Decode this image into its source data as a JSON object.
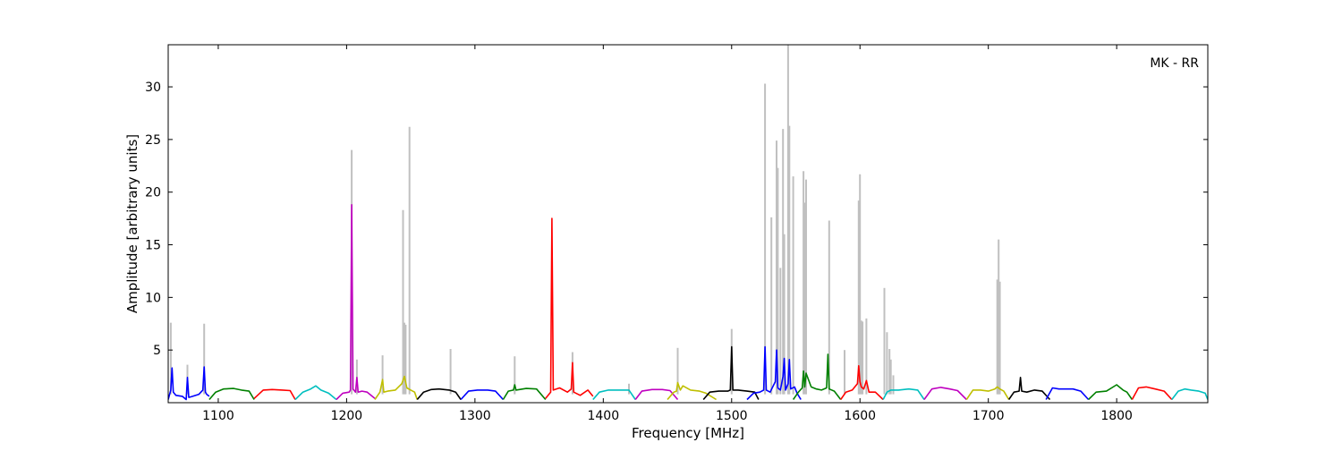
{
  "chart_data": {
    "type": "line",
    "title": "",
    "annotation": "MK - RR",
    "xlabel": "Frequency [MHz]",
    "ylabel": "Amplitude [arbitrary units]",
    "xlim": [
      1061,
      1871
    ],
    "ylim": [
      0,
      34
    ],
    "xticks": [
      1100,
      1200,
      1300,
      1400,
      1500,
      1600,
      1700,
      1800
    ],
    "yticks": [
      5,
      10,
      15,
      20,
      25,
      30
    ],
    "grid": false,
    "legend": "none",
    "colors": {
      "raw": "#c0c0c0",
      "blue": "#0000ff",
      "green": "#008000",
      "red": "#ff0000",
      "cyan": "#00bfbf",
      "magenta": "#bf00bf",
      "yellow": "#bfbf00",
      "black": "#000000"
    },
    "series": [
      {
        "color": "blue",
        "x": [
          1061,
          1063,
          1064,
          1065,
          1067,
          1072,
          1075,
          1076,
          1077,
          1080,
          1085,
          1088,
          1089,
          1090,
          1091,
          1093
        ],
        "y": [
          0.3,
          1.2,
          3.3,
          1.0,
          0.7,
          0.6,
          0.3,
          2.4,
          0.5,
          0.6,
          0.8,
          1.2,
          3.4,
          1.0,
          0.8,
          0.6
        ]
      },
      {
        "color": "green",
        "x": [
          1093,
          1098,
          1104,
          1112,
          1118,
          1124,
          1128
        ],
        "y": [
          0.3,
          1.0,
          1.3,
          1.35,
          1.2,
          1.1,
          0.3
        ]
      },
      {
        "color": "red",
        "x": [
          1128,
          1135,
          1142,
          1150,
          1156,
          1160
        ],
        "y": [
          0.4,
          1.2,
          1.25,
          1.2,
          1.15,
          0.3
        ]
      },
      {
        "color": "cyan",
        "x": [
          1160,
          1166,
          1172,
          1176,
          1180,
          1186,
          1192
        ],
        "y": [
          0.3,
          1.0,
          1.3,
          1.6,
          1.2,
          0.9,
          0.3
        ]
      },
      {
        "color": "magenta",
        "x": [
          1192,
          1197,
          1202,
          1203,
          1204,
          1205,
          1207,
          1208,
          1209,
          1212,
          1216,
          1222
        ],
        "y": [
          0.3,
          0.9,
          1.0,
          1.2,
          18.8,
          1.3,
          1.0,
          2.4,
          1.0,
          1.1,
          1.0,
          0.4
        ]
      },
      {
        "color": "yellow",
        "x": [
          1222,
          1226,
          1228,
          1229,
          1232,
          1238,
          1243,
          1245,
          1247,
          1250,
          1253,
          1255
        ],
        "y": [
          0.3,
          1.0,
          2.2,
          1.0,
          1.1,
          1.2,
          1.8,
          2.5,
          1.4,
          1.2,
          1.0,
          0.3
        ]
      },
      {
        "color": "black",
        "x": [
          1255,
          1260,
          1266,
          1272,
          1280,
          1285,
          1289
        ],
        "y": [
          0.3,
          1.0,
          1.25,
          1.3,
          1.2,
          1.0,
          0.3
        ]
      },
      {
        "color": "blue",
        "x": [
          1289,
          1295,
          1302,
          1310,
          1316,
          1322
        ],
        "y": [
          0.3,
          1.1,
          1.2,
          1.2,
          1.1,
          0.3
        ]
      },
      {
        "color": "green",
        "x": [
          1322,
          1326,
          1330,
          1331,
          1332,
          1340,
          1348,
          1355
        ],
        "y": [
          0.3,
          1.1,
          1.2,
          1.7,
          1.2,
          1.35,
          1.3,
          0.3
        ]
      },
      {
        "color": "red",
        "x": [
          1355,
          1359,
          1360,
          1361,
          1366,
          1372,
          1375,
          1376,
          1377,
          1382,
          1388,
          1392
        ],
        "y": [
          0.4,
          1.0,
          17.5,
          1.2,
          1.4,
          1.0,
          1.3,
          3.8,
          1.0,
          0.7,
          1.2,
          0.6
        ]
      },
      {
        "color": "cyan",
        "x": [
          1392,
          1397,
          1404,
          1412,
          1420,
          1425
        ],
        "y": [
          0.3,
          1.0,
          1.2,
          1.2,
          1.2,
          0.3
        ]
      },
      {
        "color": "magenta",
        "x": [
          1425,
          1430,
          1438,
          1446,
          1452,
          1458
        ],
        "y": [
          0.3,
          1.1,
          1.25,
          1.25,
          1.15,
          0.3
        ]
      },
      {
        "color": "yellow",
        "x": [
          1450,
          1455,
          1457,
          1458,
          1460,
          1462,
          1468,
          1475,
          1480,
          1488
        ],
        "y": [
          0.3,
          1.0,
          1.1,
          1.9,
          1.2,
          1.6,
          1.2,
          1.1,
          0.9,
          0.3
        ]
      },
      {
        "color": "black",
        "x": [
          1478,
          1483,
          1490,
          1497,
          1499,
          1500,
          1501,
          1505,
          1512,
          1518,
          1521
        ],
        "y": [
          0.3,
          1.0,
          1.1,
          1.1,
          1.2,
          5.3,
          1.2,
          1.2,
          1.1,
          1.0,
          0.3
        ]
      },
      {
        "color": "blue",
        "x": [
          1512,
          1517,
          1522,
          1525,
          1526,
          1527,
          1530,
          1534,
          1535,
          1536,
          1538,
          1540,
          1541,
          1542,
          1544,
          1545,
          1546,
          1549,
          1551,
          1554
        ],
        "y": [
          0.3,
          0.9,
          1.0,
          1.2,
          5.3,
          1.2,
          1.0,
          2.0,
          5.0,
          1.4,
          1.2,
          2.5,
          4.2,
          1.2,
          1.8,
          4.1,
          1.3,
          1.5,
          0.9,
          0.3
        ]
      },
      {
        "color": "green",
        "x": [
          1548,
          1552,
          1555,
          1556,
          1557,
          1558,
          1562,
          1566,
          1570,
          1574,
          1575,
          1576,
          1580,
          1585
        ],
        "y": [
          0.3,
          1.0,
          1.4,
          3.0,
          1.5,
          2.8,
          1.5,
          1.3,
          1.2,
          1.4,
          4.6,
          1.3,
          1.1,
          0.3
        ]
      },
      {
        "color": "red",
        "x": [
          1585,
          1589,
          1594,
          1598,
          1599,
          1600,
          1601,
          1603,
          1605,
          1607,
          1612,
          1618
        ],
        "y": [
          0.3,
          1.0,
          1.2,
          1.8,
          3.5,
          2.0,
          1.5,
          1.3,
          2.1,
          1.0,
          1.0,
          0.3
        ]
      },
      {
        "color": "cyan",
        "x": [
          1618,
          1621,
          1624,
          1630,
          1638,
          1645,
          1650
        ],
        "y": [
          0.3,
          1.0,
          1.2,
          1.2,
          1.3,
          1.2,
          0.3
        ]
      },
      {
        "color": "magenta",
        "x": [
          1650,
          1656,
          1663,
          1670,
          1676,
          1683
        ],
        "y": [
          0.3,
          1.3,
          1.45,
          1.3,
          1.15,
          0.3
        ]
      },
      {
        "color": "yellow",
        "x": [
          1683,
          1688,
          1694,
          1700,
          1705,
          1707,
          1709,
          1712,
          1716
        ],
        "y": [
          0.3,
          1.2,
          1.2,
          1.1,
          1.3,
          1.5,
          1.3,
          1.1,
          0.3
        ]
      },
      {
        "color": "black",
        "x": [
          1716,
          1720,
          1724,
          1725,
          1726,
          1730,
          1736,
          1742,
          1748
        ],
        "y": [
          0.3,
          1.0,
          1.1,
          2.4,
          1.1,
          1.0,
          1.2,
          1.1,
          0.3
        ]
      },
      {
        "color": "blue",
        "x": [
          1745,
          1750,
          1755,
          1760,
          1766,
          1772,
          1778
        ],
        "y": [
          0.3,
          1.4,
          1.3,
          1.3,
          1.3,
          1.1,
          0.3
        ]
      },
      {
        "color": "green",
        "x": [
          1778,
          1784,
          1792,
          1800,
          1805,
          1808,
          1812
        ],
        "y": [
          0.3,
          1.0,
          1.1,
          1.7,
          1.2,
          1.0,
          0.3
        ]
      },
      {
        "color": "red",
        "x": [
          1812,
          1817,
          1823,
          1830,
          1837,
          1843
        ],
        "y": [
          0.3,
          1.4,
          1.5,
          1.3,
          1.1,
          0.3
        ]
      },
      {
        "color": "cyan",
        "x": [
          1843,
          1848,
          1853,
          1858,
          1864,
          1869,
          1871
        ],
        "y": [
          0.3,
          1.1,
          1.3,
          1.2,
          1.1,
          0.9,
          0.3
        ]
      }
    ],
    "raw_spikes": {
      "color": "raw",
      "x": [
        1063,
        1076,
        1089,
        1204,
        1208,
        1228,
        1244,
        1245,
        1246,
        1249,
        1281,
        1331,
        1376,
        1420,
        1458,
        1500,
        1526,
        1531,
        1535,
        1536,
        1538,
        1540,
        1541,
        1544,
        1545,
        1548,
        1556,
        1557,
        1558,
        1576,
        1588,
        1599,
        1600,
        1601,
        1602,
        1605,
        1619,
        1621,
        1623,
        1624,
        1626,
        1707,
        1708,
        1709
      ],
      "y": [
        7.6,
        3.6,
        7.5,
        24.0,
        4.1,
        4.5,
        18.3,
        7.6,
        7.4,
        26.2,
        5.1,
        4.4,
        4.8,
        1.8,
        5.2,
        7.0,
        30.3,
        17.6,
        24.9,
        22.3,
        12.8,
        26.0,
        16.0,
        34.0,
        26.3,
        21.5,
        22.0,
        19.0,
        21.2,
        17.3,
        5.0,
        19.2,
        21.7,
        7.8,
        7.7,
        8.0,
        10.9,
        6.7,
        5.1,
        4.1,
        2.6,
        11.7,
        15.5,
        11.5
      ]
    }
  }
}
